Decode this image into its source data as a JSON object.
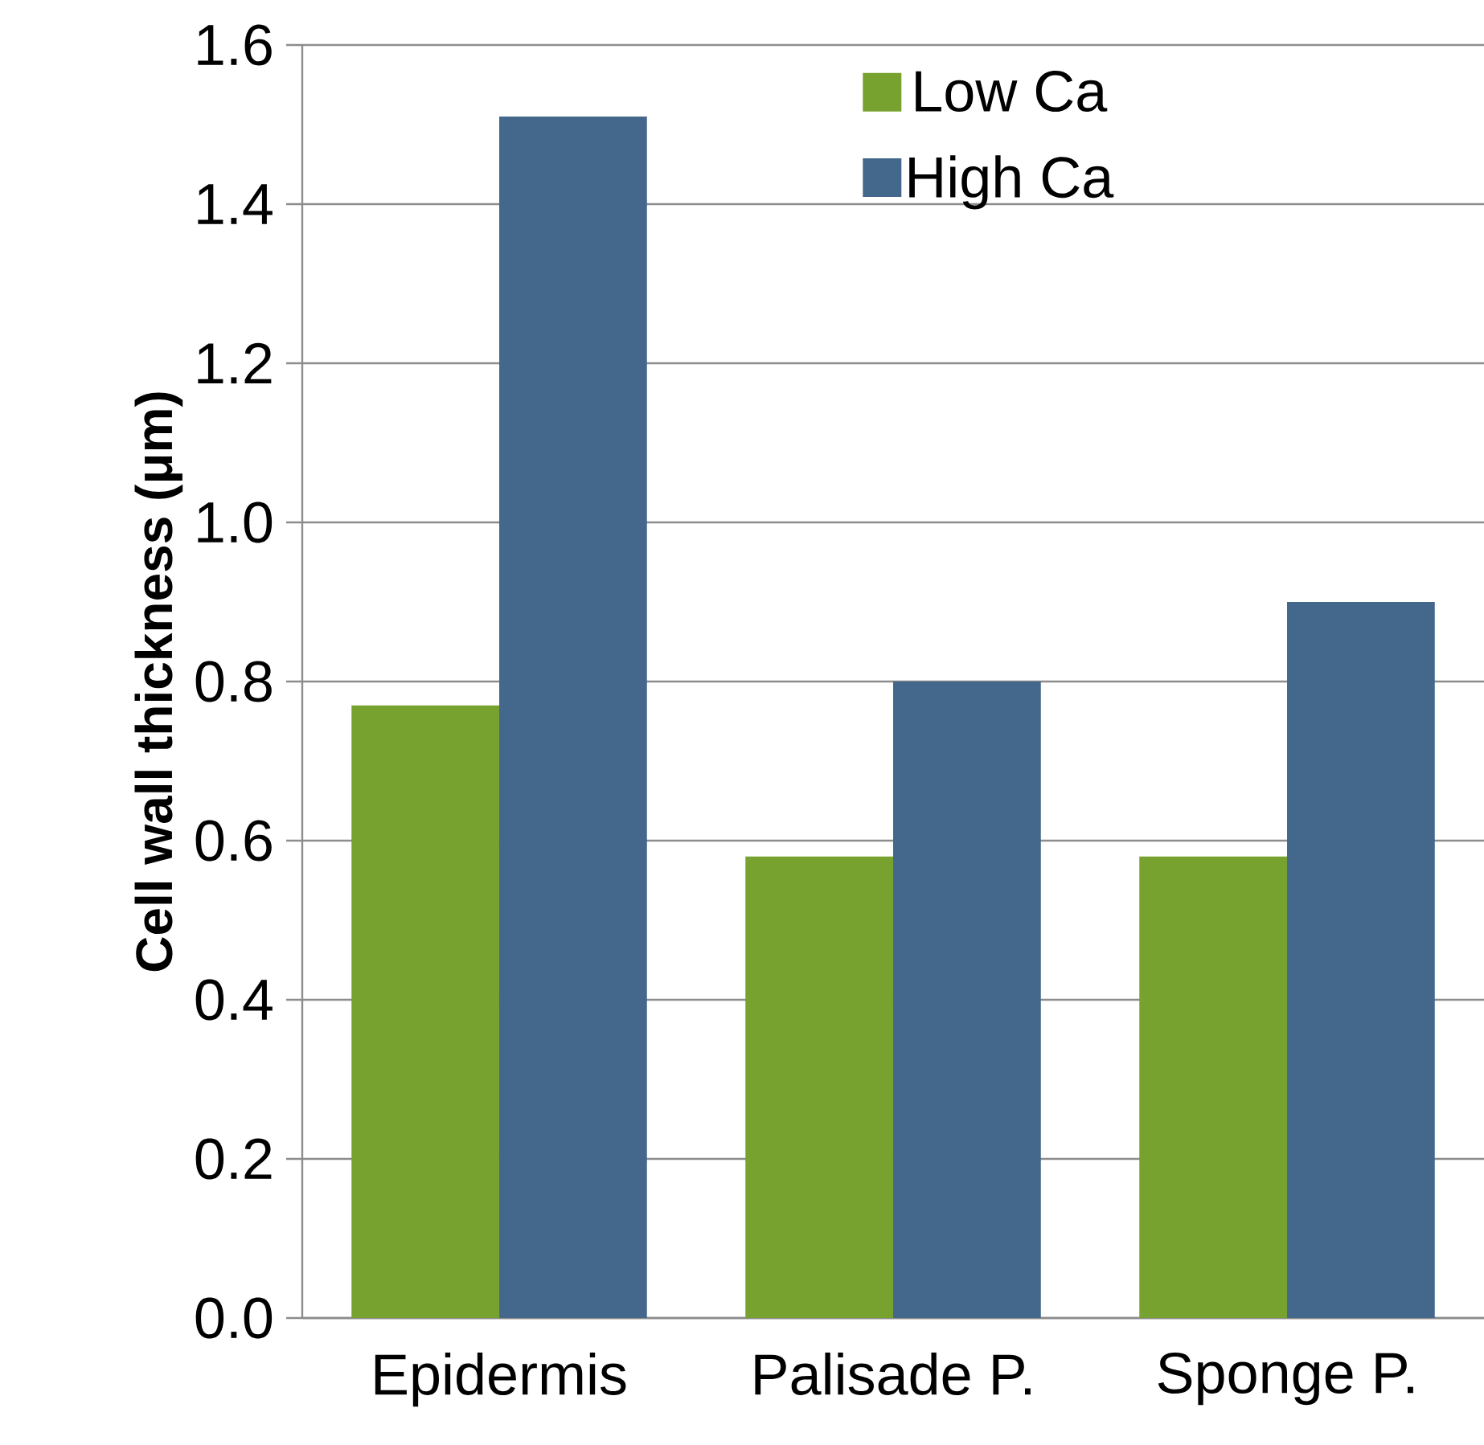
{
  "chart_data": {
    "type": "bar",
    "ylabel": "Cell wall thickness (μm)",
    "categories": [
      "Epidermis",
      "Palisade P.",
      "Sponge P."
    ],
    "series": [
      {
        "name": "Low Ca",
        "color": "#78a22f",
        "values": [
          0.77,
          0.58,
          0.58
        ]
      },
      {
        "name": "High Ca",
        "color": "#44688c",
        "values": [
          1.51,
          0.8,
          0.9
        ]
      }
    ],
    "ylim": [
      0,
      1.6
    ],
    "yticks": [
      {
        "value": 0,
        "label": "0.0"
      },
      0.2,
      0.4,
      0.6,
      0.8,
      {
        "value": 1.0,
        "label": "1.0"
      },
      1.2,
      1.4,
      1.6
    ],
    "grid": "y",
    "legend": "top right"
  }
}
